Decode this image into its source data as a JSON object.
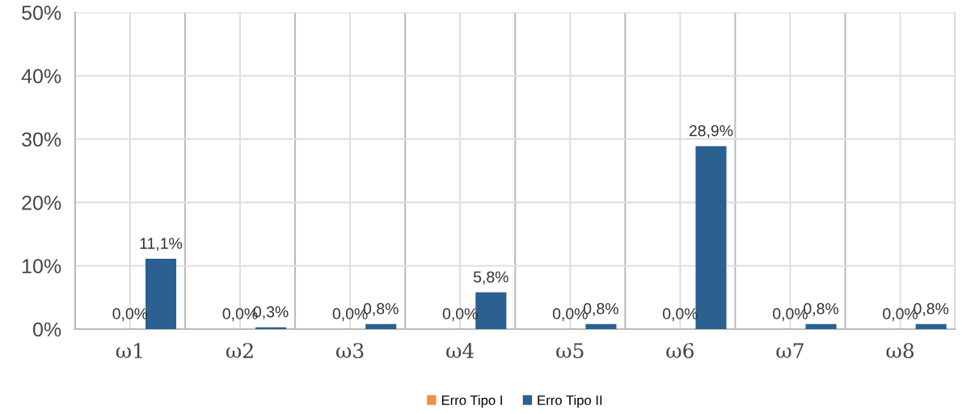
{
  "chart_data": {
    "type": "bar",
    "categories": [
      "ω1",
      "ω2",
      "ω3",
      "ω4",
      "ω5",
      "ω6",
      "ω7",
      "ω8"
    ],
    "series": [
      {
        "name": "Erro Tipo I",
        "color": "#f0913a",
        "values": [
          0,
          0,
          0,
          0,
          0,
          0,
          0,
          0
        ],
        "value_labels": [
          "0,0%",
          "0,0%",
          "0,0%",
          "0,0%",
          "0,0%",
          "0,0%",
          "0,0%",
          "0,0%"
        ]
      },
      {
        "name": "Erro Tipo II",
        "color": "#2a6190",
        "values": [
          11.1,
          0.3,
          0.8,
          5.8,
          0.8,
          28.9,
          0.8,
          0.8
        ],
        "value_labels": [
          "11,1%",
          "0,3%",
          "0,8%",
          "5,8%",
          "0,8%",
          "28,9%",
          "0,8%",
          "0,8%"
        ]
      }
    ],
    "ylim": [
      0,
      50
    ],
    "yticks": [
      {
        "value": 0,
        "label": "0%"
      },
      {
        "value": 10,
        "label": "10%"
      },
      {
        "value": 20,
        "label": "20%"
      },
      {
        "value": 30,
        "label": "30%"
      },
      {
        "value": 40,
        "label": "40%"
      },
      {
        "value": 50,
        "label": "50%"
      }
    ],
    "grid": true,
    "legend": "bottom"
  }
}
